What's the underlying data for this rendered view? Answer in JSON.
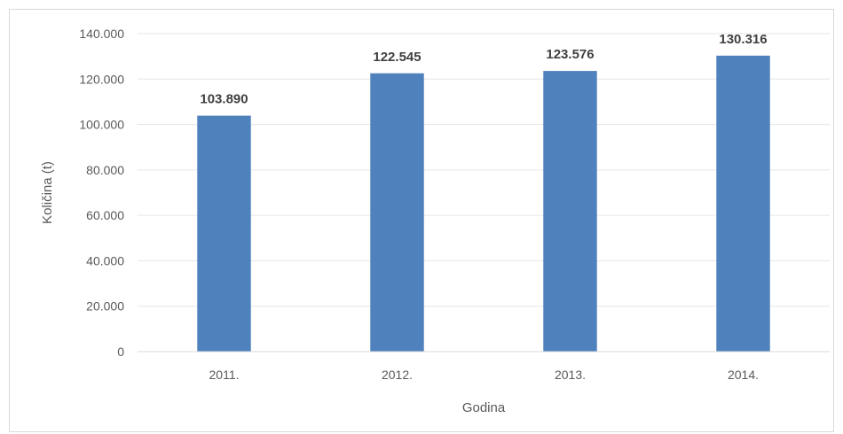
{
  "chart_data": {
    "type": "bar",
    "title": "",
    "xlabel": "Godina",
    "ylabel": "Količina (t)",
    "categories": [
      "2011.",
      "2012.",
      "2013.",
      "2014."
    ],
    "values": [
      103890,
      122545,
      123576,
      130316
    ],
    "value_labels": [
      "103.890",
      "122.545",
      "123.576",
      "130.316"
    ],
    "ylim": [
      0,
      140000
    ],
    "yticks": [
      0,
      20000,
      40000,
      60000,
      80000,
      100000,
      120000,
      140000
    ],
    "ytick_labels": [
      "0",
      "20.000",
      "40.000",
      "60.000",
      "80.000",
      "100.000",
      "120.000",
      "140.000"
    ],
    "grid": true,
    "legend": "none",
    "colors": {
      "bar": "#4f81bd",
      "gridline": "#e6e6e6",
      "axis_line": "#d9d9d9",
      "text": "#595959",
      "data_label": "#404040"
    }
  }
}
